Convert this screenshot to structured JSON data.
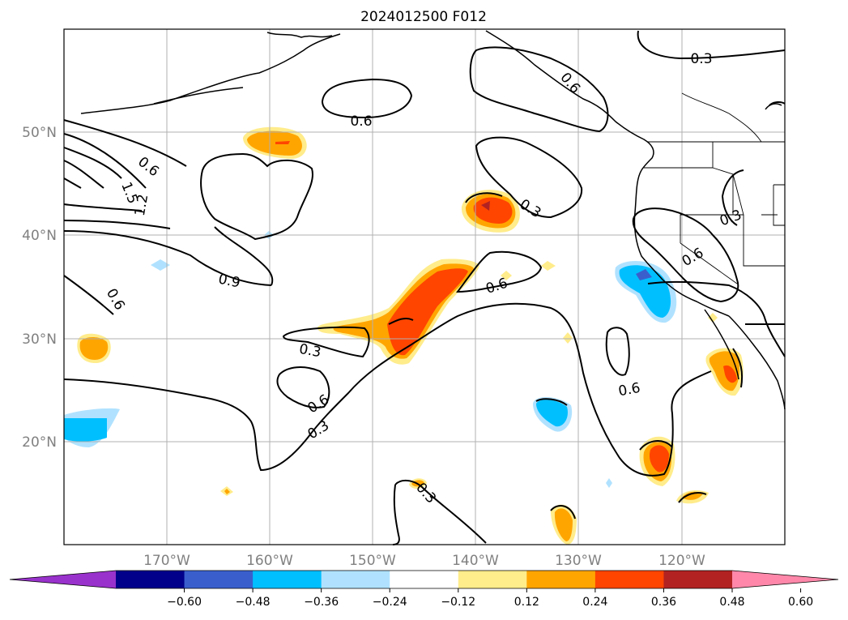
{
  "title": "2024012500 F012",
  "map": {
    "region": "North-East Pacific / U.S. West Coast",
    "lon_range": [
      -180,
      -110
    ],
    "lat_range": [
      10,
      60
    ],
    "gridlines": true,
    "lat_labels": [
      "20°N",
      "30°N",
      "40°N",
      "50°N"
    ],
    "lon_labels": [
      "170°W",
      "160°W",
      "150°W",
      "140°W",
      "130°W",
      "120°W"
    ],
    "contour_labels": [
      "0.6",
      "0.3",
      "1.5",
      "1.2",
      "0.6",
      "0.9",
      "0.6",
      "0.3",
      "0.6",
      "0.3",
      "0.6",
      "0.3",
      "0.6",
      "0.6",
      "0.3",
      "0.6",
      "0.3",
      "0.3"
    ]
  },
  "colorbar": {
    "ticks": [
      "−0.60",
      "−0.48",
      "−0.36",
      "−0.24",
      "−0.12",
      "0.12",
      "0.24",
      "0.36",
      "0.48",
      "0.60"
    ],
    "colors": [
      "#9932cc",
      "#00008b",
      "#3a5fcd",
      "#00bfff",
      "#b0e2ff",
      "#ffffff",
      "#ffec8b",
      "#ffa500",
      "#ff4500",
      "#b22222",
      "#ff88aa"
    ],
    "extend": "both"
  }
}
